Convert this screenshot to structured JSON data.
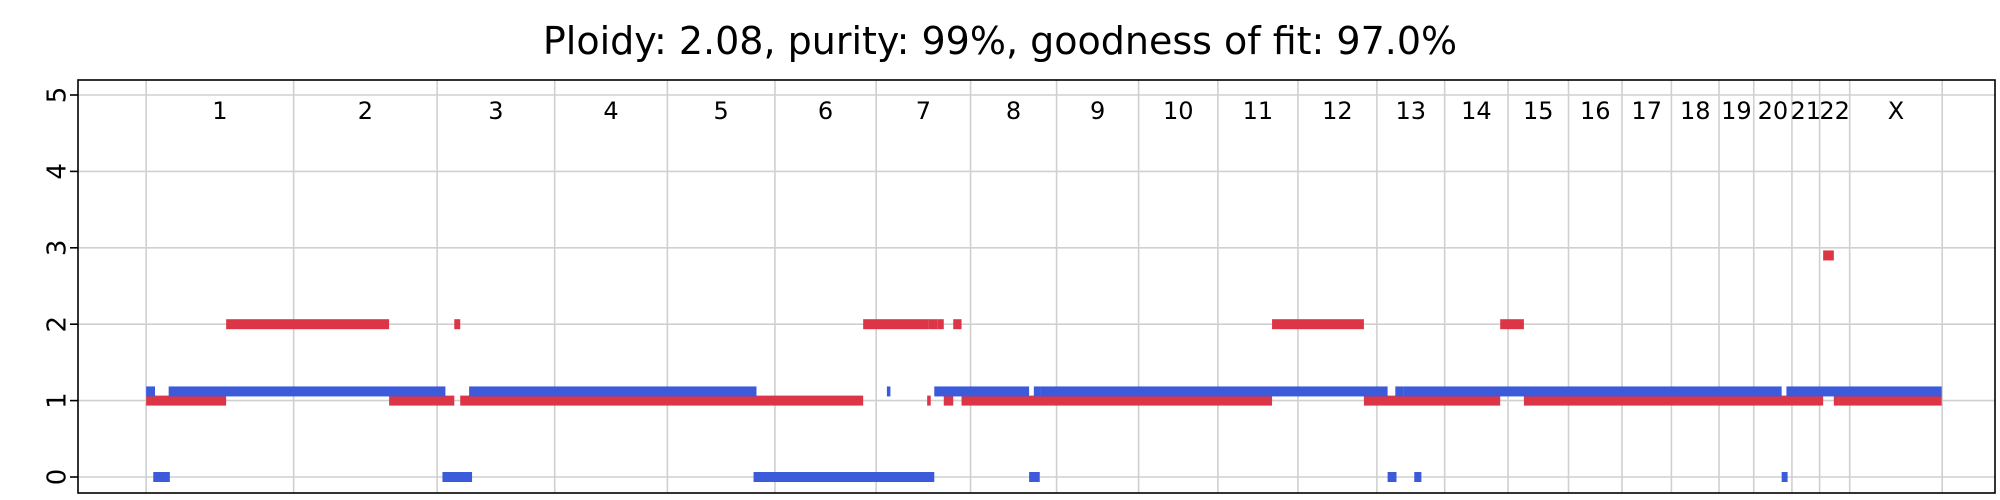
{
  "chart_data": {
    "type": "segments",
    "title": "Ploidy: 2.08, purity: 99%, goodness of fit: 97.0%",
    "xlabel": "",
    "ylabel": "",
    "ylim": [
      0,
      5
    ],
    "yticks": [
      0,
      1,
      2,
      3,
      4,
      5
    ],
    "grid": true,
    "colors": {
      "major": "#DC3545",
      "minor": "#3B5BDB",
      "grid": "#d0d0d0"
    },
    "chromosomes": [
      {
        "name": "1",
        "start": 0,
        "end": 248.9
      },
      {
        "name": "2",
        "start": 248.9,
        "end": 491.1
      },
      {
        "name": "3",
        "start": 491.1,
        "end": 689.4
      },
      {
        "name": "4",
        "start": 689.4,
        "end": 879.6
      },
      {
        "name": "5",
        "start": 879.6,
        "end": 1061.1
      },
      {
        "name": "6",
        "start": 1061.1,
        "end": 1231.9
      },
      {
        "name": "7",
        "start": 1231.9,
        "end": 1391.2
      },
      {
        "name": "8",
        "start": 1391.2,
        "end": 1536.4
      },
      {
        "name": "9",
        "start": 1536.4,
        "end": 1674.8
      },
      {
        "name": "10",
        "start": 1674.8,
        "end": 1808.6
      },
      {
        "name": "11",
        "start": 1808.6,
        "end": 1943.7
      },
      {
        "name": "12",
        "start": 1943.7,
        "end": 2076.9
      },
      {
        "name": "13",
        "start": 2076.9,
        "end": 2191.3
      },
      {
        "name": "14",
        "start": 2191.3,
        "end": 2298.3
      },
      {
        "name": "15",
        "start": 2298.3,
        "end": 2400.3
      },
      {
        "name": "16",
        "start": 2400.3,
        "end": 2490.6
      },
      {
        "name": "17",
        "start": 2490.6,
        "end": 2573.9
      },
      {
        "name": "18",
        "start": 2573.9,
        "end": 2654.3
      },
      {
        "name": "19",
        "start": 2654.3,
        "end": 2712.9
      },
      {
        "name": "20",
        "start": 2712.9,
        "end": 2777.3
      },
      {
        "name": "21",
        "start": 2777.3,
        "end": 2824.0
      },
      {
        "name": "22",
        "start": 2824.0,
        "end": 2874.8
      },
      {
        "name": "X",
        "start": 2874.8,
        "end": 3030.9
      }
    ],
    "xlim": [
      -115,
      3120
    ],
    "series": [
      {
        "name": "major",
        "segments": [
          {
            "start": 0,
            "end": 135,
            "cn": 1
          },
          {
            "start": 135,
            "end": 410,
            "cn": 2
          },
          {
            "start": 410,
            "end": 520,
            "cn": 1
          },
          {
            "start": 520,
            "end": 530,
            "cn": 2
          },
          {
            "start": 530,
            "end": 1210,
            "cn": 1
          },
          {
            "start": 1210,
            "end": 1262,
            "cn": 2
          },
          {
            "start": 1262,
            "end": 1320,
            "cn": 2
          },
          {
            "start": 1318,
            "end": 1324,
            "cn": 1
          },
          {
            "start": 1320,
            "end": 1335,
            "cn": 2
          },
          {
            "start": 1335,
            "end": 1346,
            "cn": 2
          },
          {
            "start": 1346,
            "end": 1362,
            "cn": 1
          },
          {
            "start": 1362,
            "end": 1376,
            "cn": 2
          },
          {
            "start": 1376,
            "end": 1900,
            "cn": 1
          },
          {
            "start": 1900,
            "end": 2055,
            "cn": 2
          },
          {
            "start": 2055,
            "end": 2285,
            "cn": 1
          },
          {
            "start": 2285,
            "end": 2325,
            "cn": 2
          },
          {
            "start": 2325,
            "end": 2830,
            "cn": 1
          },
          {
            "start": 2830,
            "end": 2848,
            "cn": 2.9
          },
          {
            "start": 2848,
            "end": 2856,
            "cn": 1
          },
          {
            "start": 2856,
            "end": 3030,
            "cn": 1
          }
        ]
      },
      {
        "name": "minor",
        "segments": [
          {
            "start": 0,
            "end": 15,
            "cn": 1.12
          },
          {
            "start": 12,
            "end": 40,
            "cn": 0
          },
          {
            "start": 38,
            "end": 505,
            "cn": 1.12
          },
          {
            "start": 500,
            "end": 550,
            "cn": 0
          },
          {
            "start": 545,
            "end": 1030,
            "cn": 1.12
          },
          {
            "start": 1025,
            "end": 1330,
            "cn": 0
          },
          {
            "start": 1250,
            "end": 1256,
            "cn": 1.12
          },
          {
            "start": 1330,
            "end": 1490,
            "cn": 1.12
          },
          {
            "start": 1490,
            "end": 1508,
            "cn": 0
          },
          {
            "start": 1498,
            "end": 1510,
            "cn": 1.12
          },
          {
            "start": 1510,
            "end": 2095,
            "cn": 1.12
          },
          {
            "start": 2095,
            "end": 2110,
            "cn": 0
          },
          {
            "start": 2108,
            "end": 2122,
            "cn": 1.12
          },
          {
            "start": 2122,
            "end": 2760,
            "cn": 1.12
          },
          {
            "start": 2140,
            "end": 2152,
            "cn": 0
          },
          {
            "start": 2760,
            "end": 2770,
            "cn": 0
          },
          {
            "start": 2768,
            "end": 3030,
            "cn": 1.12
          }
        ]
      }
    ]
  }
}
